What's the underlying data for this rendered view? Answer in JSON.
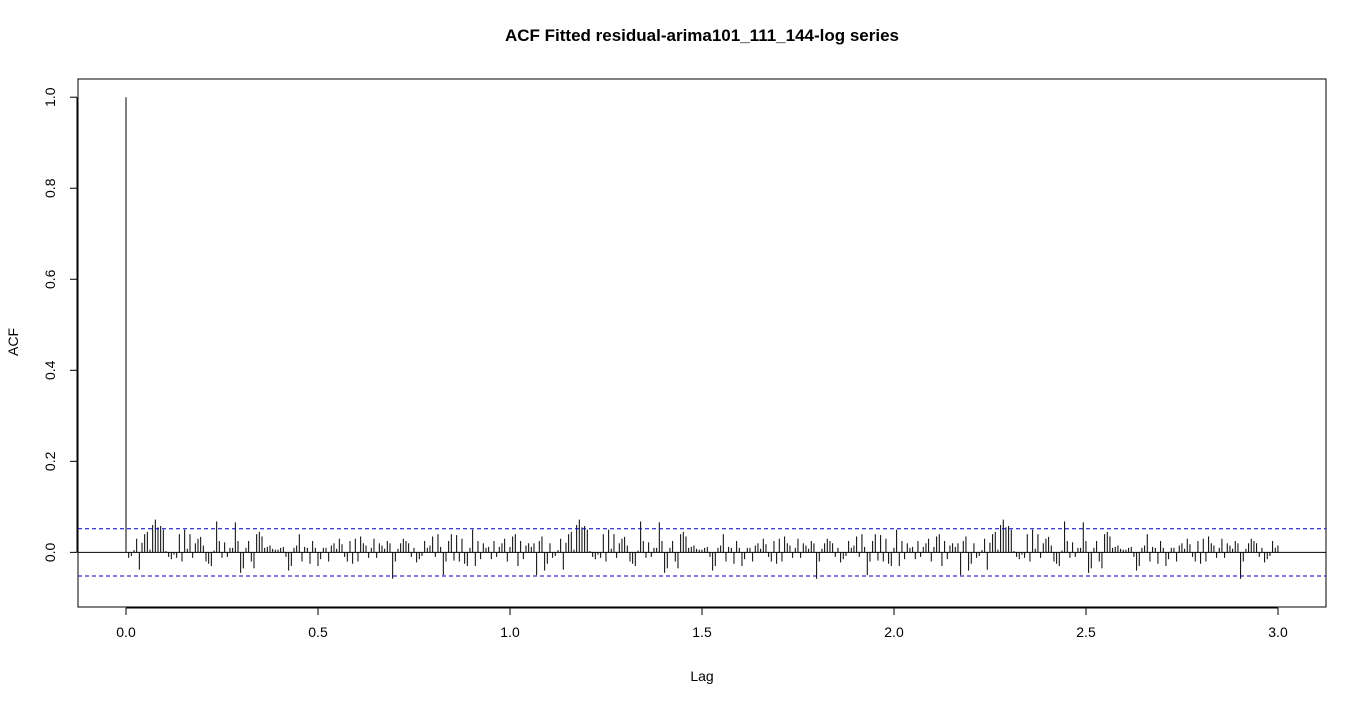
{
  "chart_data": {
    "type": "bar",
    "title": "ACF Fitted residual-arima101_111_144-log series",
    "xlabel": "Lag",
    "ylabel": "ACF",
    "xlim": [
      -0.125,
      3.125
    ],
    "ylim": [
      -0.12,
      1.04
    ],
    "x_ticks": [
      "0.0",
      "0.5",
      "1.0",
      "1.5",
      "2.0",
      "2.5",
      "3.0"
    ],
    "y_ticks": [
      "0.0",
      "0.2",
      "0.4",
      "0.6",
      "0.8",
      "1.0"
    ],
    "confidence_band": 0.052,
    "colors": {
      "bars": "#000000",
      "band": "#0000cc",
      "zero_line": "#000000"
    },
    "lag_step": 0.006944,
    "acf": [
      1.0,
      -0.012,
      -0.008,
      0.005,
      0.03,
      -0.038,
      0.021,
      0.04,
      0.045,
      0.006,
      0.06,
      0.072,
      0.055,
      0.058,
      0.05,
      0.003,
      -0.01,
      -0.015,
      -0.005,
      -0.012,
      0.04,
      -0.02,
      0.05,
      0.008,
      0.04,
      -0.012,
      0.02,
      0.03,
      0.034,
      0.015,
      -0.02,
      -0.025,
      -0.03,
      0.004,
      0.068,
      0.025,
      -0.012,
      0.022,
      -0.01,
      0.01,
      0.01,
      0.066,
      0.025,
      -0.045,
      -0.035,
      0.01,
      0.025,
      -0.02,
      -0.035,
      0.04,
      0.045,
      0.035,
      0.01,
      0.012,
      0.015,
      0.008,
      0.006,
      0.006,
      0.01,
      0.012,
      -0.01,
      -0.04,
      -0.03,
      0.01,
      0.015,
      0.04,
      -0.02,
      0.012,
      0.01,
      -0.025,
      0.025,
      0.01,
      -0.03,
      -0.015,
      0.01,
      0.01,
      -0.02,
      0.015,
      0.02,
      0.008,
      0.03,
      0.018,
      -0.01,
      -0.02,
      0.025,
      -0.025,
      0.03,
      -0.02,
      0.035,
      0.02,
      0.015,
      -0.012,
      0.01,
      0.03,
      -0.012,
      0.02,
      0.015,
      0.008,
      0.025,
      0.02,
      -0.058,
      -0.02,
      0.008,
      0.02,
      0.03,
      0.025,
      0.02,
      -0.01,
      0.01,
      -0.022,
      -0.015,
      -0.008,
      0.025,
      0.01,
      0.015,
      0.035,
      -0.01,
      0.04,
      0.012,
      -0.05,
      -0.02,
      0.025,
      0.04,
      -0.018,
      0.038,
      -0.02,
      0.03,
      -0.025,
      -0.03,
      0.01,
      0.05,
      -0.03,
      0.025,
      -0.015,
      0.02,
      0.01,
      0.012,
      -0.015,
      0.025,
      -0.01,
      0.012,
      0.02,
      0.03,
      -0.02,
      0.012,
      0.035,
      0.04,
      -0.03,
      0.025,
      -0.015,
      0.015,
      0.02,
      0.012,
      0.02,
      -0.05,
      0.025,
      0.035,
      -0.04,
      -0.025,
      0.02
    ]
  }
}
